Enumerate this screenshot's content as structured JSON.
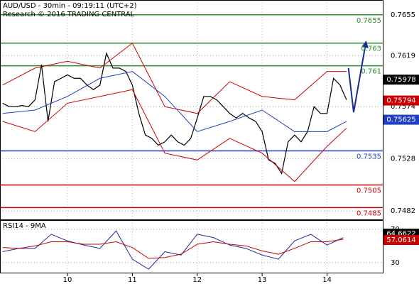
{
  "chart_data": [
    {
      "type": "line",
      "title": "AUD/USD - 30min - 09:19:11 (UTC+2)",
      "subtitle": "Research © 2016 TRADING CENTRAL",
      "xlim": [
        8.96,
        14.87
      ],
      "xticks": [
        10,
        11,
        12,
        13,
        14
      ],
      "ylim": [
        0.7474,
        0.7668
      ],
      "yticks": [
        0.7655,
        0.7619,
        0.7574,
        0.7528,
        0.7482
      ],
      "grid": true,
      "series": [
        {
          "color": "#000000",
          "width": 1.2,
          "x": [
            9.0,
            9.1,
            9.2,
            9.3,
            9.4,
            9.5,
            9.6,
            9.7,
            9.8,
            9.9,
            10.0,
            10.1,
            10.2,
            10.3,
            10.4,
            10.5,
            10.6,
            10.7,
            10.8,
            10.9,
            11.0,
            11.1,
            11.2,
            11.3,
            11.4,
            11.5,
            11.6,
            11.7,
            11.8,
            11.9,
            12.0,
            12.1,
            12.2,
            12.3,
            12.4,
            12.5,
            12.6,
            12.7,
            12.8,
            12.9,
            13.0,
            13.1,
            13.2,
            13.3,
            13.4,
            13.5,
            13.6,
            13.7,
            13.8,
            13.9,
            14.0,
            14.1,
            14.2,
            14.3
          ],
          "values": [
            0.7577,
            0.7574,
            0.7574,
            0.7575,
            0.7574,
            0.758,
            0.7611,
            0.7561,
            0.7596,
            0.7599,
            0.7602,
            0.7599,
            0.7599,
            0.7593,
            0.7589,
            0.7593,
            0.7621,
            0.7608,
            0.7608,
            0.7605,
            0.7593,
            0.7568,
            0.7549,
            0.7546,
            0.754,
            0.7543,
            0.7549,
            0.7543,
            0.754,
            0.7546,
            0.7564,
            0.7583,
            0.7583,
            0.758,
            0.7574,
            0.7568,
            0.7564,
            0.7568,
            0.7564,
            0.7561,
            0.7552,
            0.7527,
            0.7524,
            0.7515,
            0.7543,
            0.7549,
            0.7543,
            0.7552,
            0.7574,
            0.7568,
            0.7568,
            0.7599,
            0.7593,
            0.758
          ]
        },
        {
          "color": "#cc0000",
          "width": 1,
          "x": [
            9.0,
            9.5,
            10.0,
            10.5,
            11.0,
            11.5,
            12.0,
            12.5,
            13.0,
            13.5,
            14.0,
            14.3
          ],
          "values": [
            0.7593,
            0.7608,
            0.7614,
            0.7608,
            0.763,
            0.7574,
            0.7568,
            0.7596,
            0.7583,
            0.758,
            0.7605,
            0.7605
          ]
        },
        {
          "color": "#cc0000",
          "width": 1,
          "x": [
            9.0,
            9.5,
            10.0,
            10.5,
            11.0,
            11.5,
            12.0,
            12.5,
            13.0,
            13.5,
            14.0,
            14.3
          ],
          "values": [
            0.7561,
            0.7552,
            0.7577,
            0.7583,
            0.7589,
            0.7533,
            0.7527,
            0.7546,
            0.7533,
            0.7508,
            0.7539,
            0.7555
          ]
        },
        {
          "color": "#1f3fbf",
          "width": 1,
          "x": [
            9.0,
            9.5,
            10.0,
            10.5,
            11.0,
            11.5,
            12.0,
            12.5,
            13.0,
            13.5,
            14.0,
            14.3
          ],
          "values": [
            0.7568,
            0.7571,
            0.7583,
            0.7599,
            0.7605,
            0.7583,
            0.7552,
            0.7561,
            0.7571,
            0.7552,
            0.7552,
            0.7561
          ]
        },
        {
          "color": "#1a2a99",
          "width": 2,
          "arrow": true,
          "x": [
            14.33,
            14.41,
            14.6
          ],
          "values": [
            0.7608,
            0.7569,
            0.7631
          ]
        }
      ],
      "levels": [
        {
          "value": 0.7655,
          "color": "#2e8b2e"
        },
        {
          "value": 0.763,
          "color": "#2e8b2e"
        },
        {
          "value": 0.761,
          "color": "#2e8b2e"
        },
        {
          "value": 0.7535,
          "color": "#1f3fbf"
        },
        {
          "value": 0.7505,
          "color": "#cc0000"
        },
        {
          "value": 0.7485,
          "color": "#cc0000"
        }
      ],
      "markers": [
        {
          "value": 0.75978,
          "color": "#000000"
        },
        {
          "value": 0.75794,
          "color": "#cc0000"
        },
        {
          "value": 0.75625,
          "color": "#1f3fbf"
        }
      ]
    },
    {
      "type": "line",
      "title": "RSI14 - 9MA",
      "xlim": [
        8.96,
        14.87
      ],
      "ylim": [
        17,
        81
      ],
      "yticks": [
        70,
        30
      ],
      "grid": true,
      "series": [
        {
          "color": "#1a2a99",
          "width": 1,
          "x": [
            9.0,
            9.25,
            9.5,
            9.75,
            10.0,
            10.25,
            10.5,
            10.75,
            11.0,
            11.25,
            11.5,
            11.75,
            12.0,
            12.25,
            12.5,
            12.75,
            13.0,
            13.25,
            13.5,
            13.75,
            14.0,
            14.25
          ],
          "values": [
            43,
            47,
            47,
            64,
            56,
            51,
            47,
            68,
            34,
            22,
            43,
            39,
            64,
            60,
            51,
            47,
            39,
            34,
            56,
            64,
            51,
            60
          ]
        },
        {
          "color": "#cc0000",
          "width": 1,
          "x": [
            9.0,
            9.25,
            9.5,
            9.75,
            10.0,
            10.25,
            10.5,
            10.75,
            11.0,
            11.25,
            11.5,
            11.75,
            12.0,
            12.25,
            12.5,
            12.75,
            13.0,
            13.25,
            13.5,
            13.75,
            14.0,
            14.25
          ],
          "values": [
            48,
            47,
            50,
            55,
            55,
            52,
            52,
            55,
            48,
            35,
            36,
            40,
            52,
            55,
            52,
            50,
            44,
            40,
            47,
            55,
            55,
            58
          ]
        }
      ],
      "markers": [
        {
          "value": 64.6622,
          "color": "#000000"
        },
        {
          "value": 57.0614,
          "color": "#cc0000"
        }
      ]
    }
  ]
}
